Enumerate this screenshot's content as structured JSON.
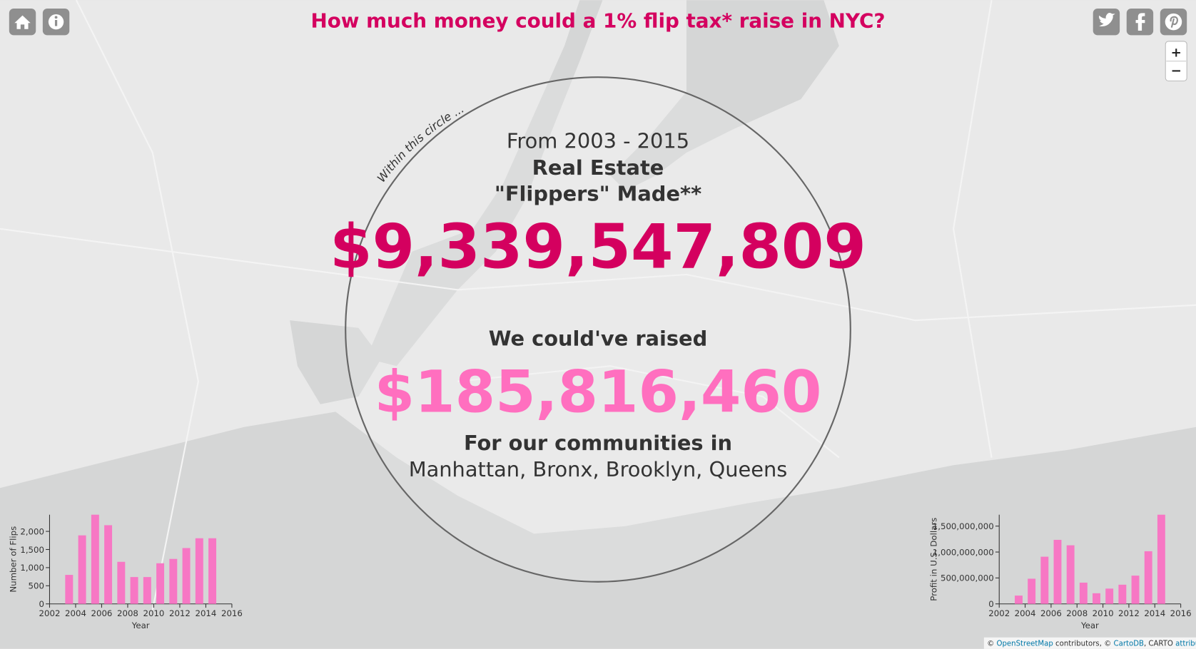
{
  "header": {
    "title": "How much money could a 1% flip tax* raise in NYC?"
  },
  "zoom": {
    "in": "+",
    "out": "−"
  },
  "circle": {
    "caption": "Within this circle ...",
    "period": "From 2003 - 2015",
    "line1": "Real Estate",
    "line2": "\"Flippers\" Made**",
    "profit": "$9,339,547,809",
    "raised_label": "We could've raised",
    "raised": "$185,816,460",
    "communities_label": "For our communities in",
    "boroughs": "Manhattan, Bronx, Brooklyn, Queens"
  },
  "attribution": {
    "prefix": "©",
    "osm": "OpenStreetMap",
    "mid": "contributors, ©",
    "carto": "CartoDB",
    "carto2": ", CARTO",
    "link": "attribution"
  },
  "chart_data": [
    {
      "type": "bar",
      "x_label": "Year",
      "y_label": "Number of Flips",
      "color": "#f777c4",
      "x": [
        2003,
        2004,
        2005,
        2006,
        2007,
        2008,
        2009,
        2010,
        2011,
        2012,
        2013,
        2014
      ],
      "values": [
        800,
        1890,
        2460,
        2170,
        1160,
        740,
        740,
        1120,
        1240,
        1540,
        1810,
        1810
      ],
      "xlim": [
        2002,
        2016
      ],
      "xticks": [
        2002,
        2004,
        2006,
        2008,
        2010,
        2012,
        2014,
        2016
      ],
      "ylim": [
        0,
        2460
      ],
      "yticks": [
        0,
        500,
        {
          "value": 1000,
          "label": "1,000"
        },
        {
          "value": 1500,
          "label": "1,500"
        },
        {
          "value": 2000,
          "label": "2,000"
        }
      ]
    },
    {
      "type": "bar",
      "x_label": "Year",
      "y_label": "Profit in U.S. Dollars",
      "color": "#f777c4",
      "x": [
        2003,
        2004,
        2005,
        2006,
        2007,
        2008,
        2009,
        2010,
        2011,
        2012,
        2013,
        2014
      ],
      "values": [
        160000000,
        485000000,
        910000000,
        1235000000,
        1130000000,
        410000000,
        205000000,
        295000000,
        370000000,
        545000000,
        1015000000,
        1720000000
      ],
      "xlim": [
        2002,
        2016
      ],
      "xticks": [
        2002,
        2004,
        2006,
        2008,
        2010,
        2012,
        2014,
        2016
      ],
      "ylim": [
        0,
        1720000000
      ],
      "yticks": [
        0,
        {
          "value": 500000000,
          "label": "500,000,000"
        },
        {
          "value": 1000000000,
          "label": "1,000,000,000"
        },
        {
          "value": 1500000000,
          "label": "1,500,000,000"
        }
      ]
    }
  ]
}
